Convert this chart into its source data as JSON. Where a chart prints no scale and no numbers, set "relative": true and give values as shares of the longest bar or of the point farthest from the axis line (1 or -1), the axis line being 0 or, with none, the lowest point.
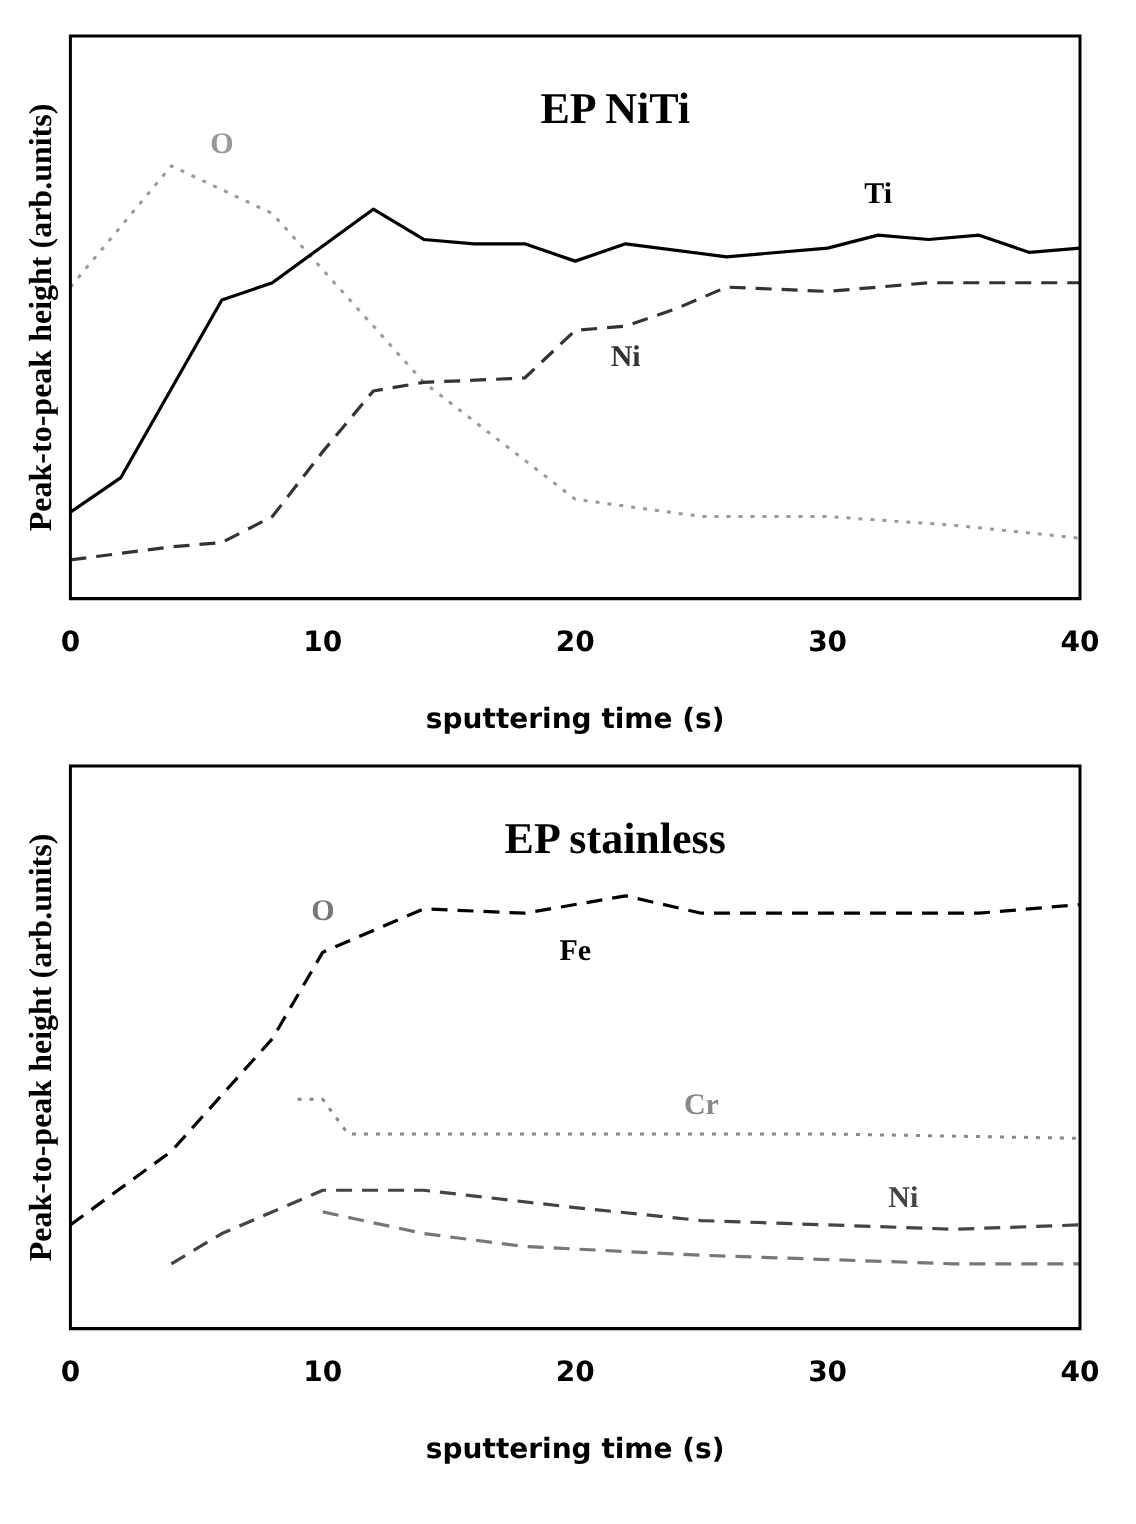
{
  "chart_data": [
    {
      "type": "line",
      "title": "EP NiTi",
      "xlabel": "sputtering time (s)",
      "ylabel": "Peak-to-peak height (arb.units)",
      "relative": true,
      "xlim": [
        0,
        40
      ],
      "xticks": [
        0,
        10,
        20,
        30,
        40
      ],
      "tick_labels": "x",
      "grid": false,
      "legend": false,
      "series": [
        {
          "name": "Ti",
          "color": "#000000",
          "line_style": "solid",
          "x": [
            0,
            2,
            6,
            8,
            12,
            14,
            16,
            18,
            20,
            22,
            26,
            30,
            32,
            34,
            36,
            38,
            40
          ],
          "values": [
            0.2,
            0.28,
            0.69,
            0.73,
            0.9,
            0.83,
            0.82,
            0.82,
            0.78,
            0.82,
            0.79,
            0.81,
            0.84,
            0.83,
            0.84,
            0.8,
            0.81
          ]
        },
        {
          "name": "Ni",
          "color": "#333333",
          "line_style": "dashed",
          "x": [
            0,
            4,
            6,
            8,
            10,
            12,
            14,
            18,
            20,
            22,
            24,
            26,
            30,
            34,
            40
          ],
          "values": [
            0.09,
            0.12,
            0.13,
            0.19,
            0.34,
            0.48,
            0.5,
            0.51,
            0.62,
            0.63,
            0.67,
            0.72,
            0.71,
            0.73,
            0.73
          ]
        },
        {
          "name": "O",
          "color": "#999999",
          "line_style": "dotted",
          "x": [
            0,
            4,
            8,
            10,
            14,
            20,
            25,
            30,
            35,
            40
          ],
          "values": [
            0.72,
            1,
            0.89,
            0.76,
            0.5,
            0.23,
            0.19,
            0.19,
            0.17,
            0.14
          ]
        }
      ]
    },
    {
      "type": "line",
      "title": "EP stainless",
      "xlabel": "sputtering time (s)",
      "ylabel": "Peak-to-peak height (arb.units)",
      "relative": true,
      "xlim": [
        0,
        40
      ],
      "xticks": [
        0,
        10,
        20,
        30,
        40
      ],
      "tick_labels": "x",
      "grid": false,
      "legend": false,
      "series": [
        {
          "name": "Fe",
          "color": "#000000",
          "line_style": "dashed",
          "x": [
            0,
            4,
            8,
            10,
            14,
            18,
            22,
            25,
            36,
            40
          ],
          "values": [
            0.24,
            0.41,
            0.67,
            0.87,
            0.97,
            0.96,
            1,
            0.96,
            0.96,
            0.98
          ]
        },
        {
          "name": "Cr",
          "color": "#888888",
          "line_style": "dotted",
          "x": [
            9,
            10,
            11,
            20,
            30,
            40
          ],
          "values": [
            0.53,
            0.53,
            0.45,
            0.45,
            0.45,
            0.44
          ]
        },
        {
          "name": "Ni",
          "color": "#444444",
          "line_style": "dashed",
          "x": [
            4,
            6,
            10,
            14,
            20,
            25,
            30,
            35,
            40
          ],
          "values": [
            0.15,
            0.22,
            0.32,
            0.32,
            0.28,
            0.25,
            0.24,
            0.23,
            0.24
          ]
        },
        {
          "name": "O",
          "color": "#777777",
          "line_style": "dashed",
          "x": [
            10,
            14,
            18,
            25,
            30,
            35,
            40
          ],
          "values": [
            0.27,
            0.22,
            0.19,
            0.17,
            0.16,
            0.15,
            0.15
          ]
        }
      ]
    }
  ]
}
